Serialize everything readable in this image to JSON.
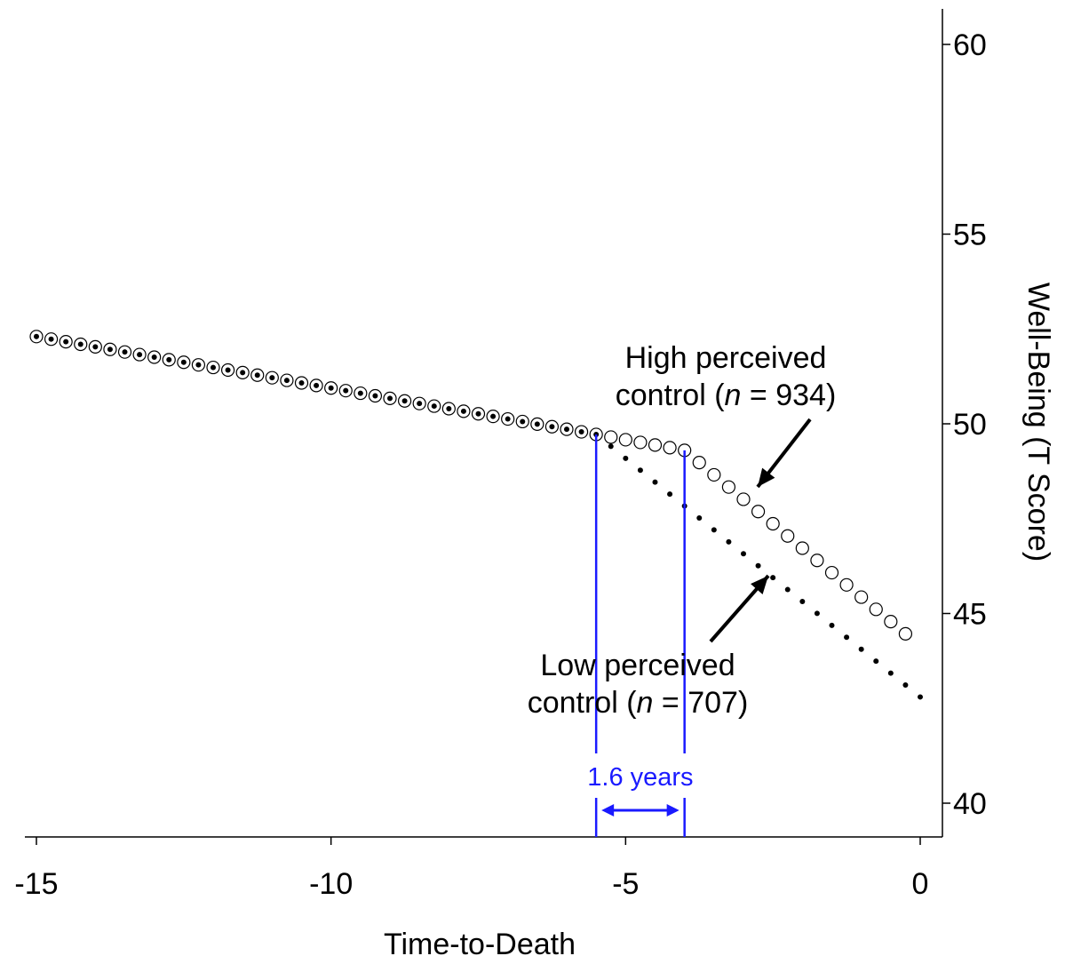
{
  "chart_data": {
    "type": "scatter",
    "xlabel": "Time-to-Death",
    "ylabel": "Well-Being (T Score)",
    "x_ticks": [
      -15,
      -10,
      -5,
      0
    ],
    "y_ticks": [
      40,
      45,
      50,
      55,
      60
    ],
    "xlim": [
      -15.05,
      0.4
    ],
    "ylim": [
      39,
      61
    ],
    "y_axis_position": "right",
    "grid": false,
    "series": [
      {
        "name": "High perceived control (n = 934)",
        "marker": "open-circle",
        "segments": [
          {
            "x_start": -15,
            "x_end": -5.5,
            "y_start": 52.3,
            "y_end": 49.72
          },
          {
            "x_start": -5.5,
            "x_end": -4.0,
            "y_start": 49.72,
            "y_end": 49.3
          },
          {
            "x_start": -4.0,
            "x_end": -0.2,
            "y_start": 49.3,
            "y_end": 44.4
          }
        ]
      },
      {
        "name": "Low perceived control (n = 707)",
        "marker": "small-filled-dot",
        "segments": [
          {
            "x_start": -15,
            "x_end": -5.5,
            "y_start": 52.3,
            "y_end": 49.72
          },
          {
            "x_start": -5.5,
            "x_end": 0,
            "y_start": 49.72,
            "y_end": 42.8
          }
        ]
      }
    ],
    "annotations": {
      "high": {
        "line1": "High perceived",
        "line2_prefix": "control (",
        "n_symbol": "n",
        "line2_suffix": " = 934)"
      },
      "low": {
        "line1": "Low perceived",
        "line2_prefix": "control (",
        "n_symbol": "n",
        "line2_suffix": " = 707)"
      },
      "interval": {
        "label": "1.6 years",
        "x_from": -5.5,
        "x_to": -4.0,
        "color": "#1a1aff"
      }
    }
  }
}
